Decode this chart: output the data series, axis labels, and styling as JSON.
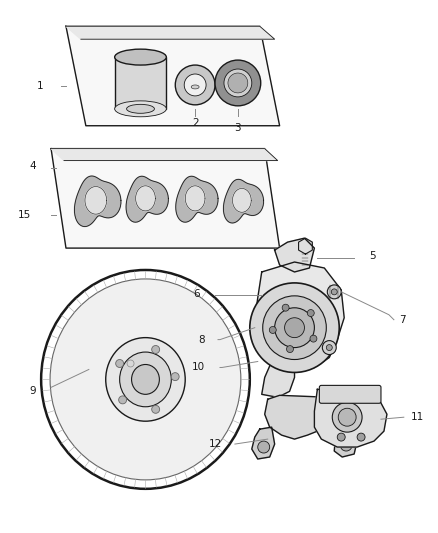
{
  "bg_color": "#ffffff",
  "line_color": "#1a1a1a",
  "fill_light": "#f5f5f5",
  "fill_mid": "#e0e0e0",
  "fill_dark": "#c0c0c0",
  "leader_color": "#888888",
  "fig_width": 4.38,
  "fig_height": 5.33,
  "dpi": 100
}
